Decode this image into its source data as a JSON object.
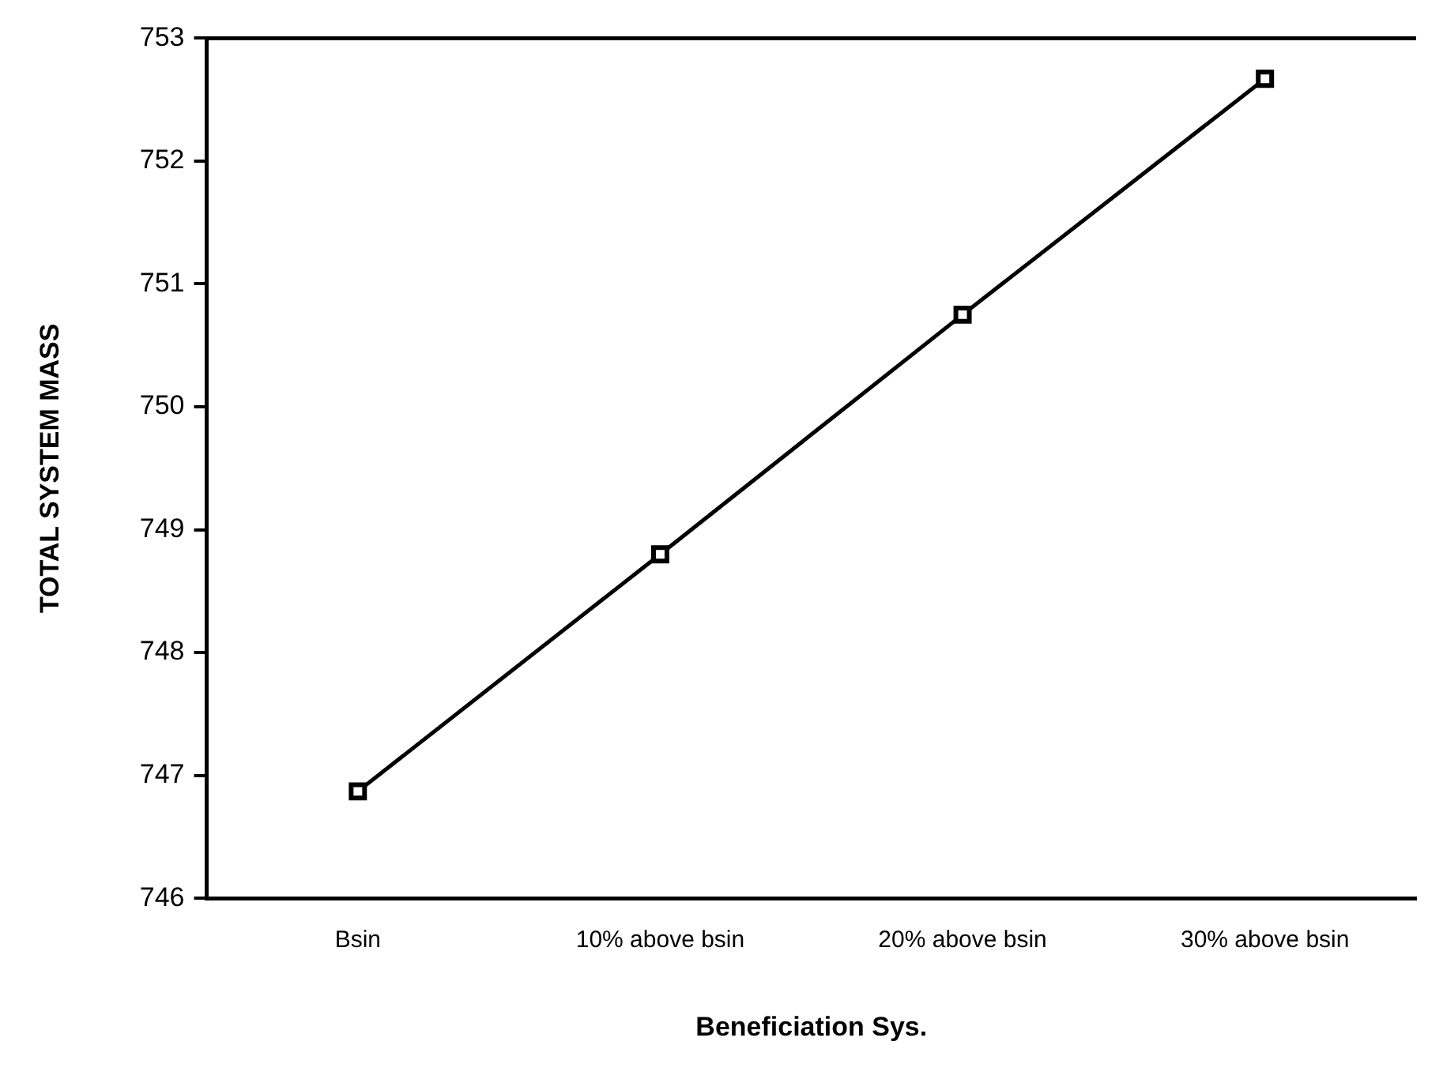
{
  "chart_data": {
    "type": "line",
    "xlabel": "Beneficiation Sys.",
    "ylabel": "TOTAL SYSTEM MASS",
    "categories": [
      "Bsin",
      "10% above bsin",
      "20% above bsin",
      "30% above bsin"
    ],
    "series": [
      {
        "color": "#000000",
        "values": [
          746.87,
          748.8,
          750.75,
          752.67
        ]
      }
    ],
    "ylim": [
      746,
      753
    ],
    "yticks": [
      746,
      747,
      748,
      749,
      750,
      751,
      752,
      753
    ],
    "marker": "square",
    "line_style": "solid",
    "grid": false,
    "legend": false
  }
}
